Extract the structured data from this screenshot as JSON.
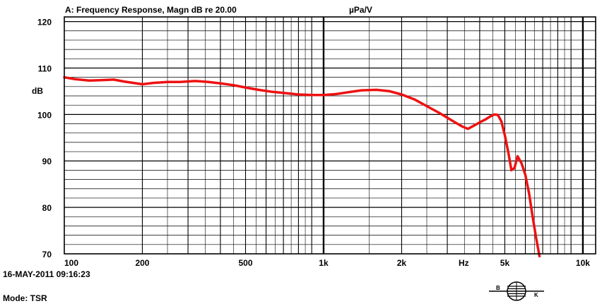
{
  "header": {
    "title": "A: Frequency Response, Magn dB re 20.00",
    "unit": "µPa/V"
  },
  "footer": {
    "timestamp": "16-MAY-2011 09:16:23",
    "mode": "Mode: TSR"
  },
  "logo": {
    "icon": "bruel-kjaer-logo",
    "left_letter": "B",
    "right_letter": "K"
  },
  "colors": {
    "curve": "#ee1111",
    "grid": "#000000",
    "background": "#ffffff"
  },
  "chart_data": {
    "type": "line",
    "title": "A: Frequency Response, Magn dB re 20.00",
    "xlabel": "Hz",
    "ylabel": "dB",
    "xscale": "log",
    "xlim": [
      100,
      11200
    ],
    "ylim": [
      70,
      121
    ],
    "grid": true,
    "x_ticks": [
      {
        "value": 100,
        "label": "100"
      },
      {
        "value": 200,
        "label": "200"
      },
      {
        "value": 500,
        "label": "500"
      },
      {
        "value": 1000,
        "label": "1k"
      },
      {
        "value": 2000,
        "label": "2k"
      },
      {
        "value": 5000,
        "label": "5k"
      },
      {
        "value": 10000,
        "label": "10k"
      }
    ],
    "y_ticks": [
      {
        "value": 70,
        "label": "70"
      },
      {
        "value": 80,
        "label": "80"
      },
      {
        "value": 90,
        "label": "90"
      },
      {
        "value": 100,
        "label": "100"
      },
      {
        "value": 110,
        "label": "110"
      },
      {
        "value": 120,
        "label": "120"
      }
    ],
    "series": [
      {
        "x": [
          100,
          110,
          125,
          140,
          155,
          170,
          185,
          200,
          220,
          250,
          280,
          320,
          360,
          400,
          450,
          500,
          560,
          630,
          710,
          800,
          900,
          1000,
          1120,
          1250,
          1400,
          1600,
          1800,
          2000,
          2250,
          2500,
          2800,
          3150,
          3400,
          3600,
          3800,
          4000,
          4200,
          4400,
          4550,
          4700,
          4850,
          5000,
          5150,
          5300,
          5450,
          5600,
          5800,
          6000,
          6200,
          6400,
          6600,
          6800
        ],
        "y": [
          108.0,
          107.6,
          107.3,
          107.4,
          107.5,
          107.1,
          106.8,
          106.5,
          106.8,
          107.0,
          107.0,
          107.2,
          107.0,
          106.7,
          106.3,
          105.8,
          105.3,
          104.9,
          104.6,
          104.3,
          104.2,
          104.2,
          104.4,
          104.8,
          105.2,
          105.3,
          105.0,
          104.3,
          103.2,
          101.8,
          100.3,
          98.6,
          97.5,
          96.9,
          97.6,
          98.3,
          98.9,
          99.6,
          100.0,
          99.9,
          98.5,
          95.5,
          92.0,
          88.0,
          88.5,
          91.0,
          89.5,
          87.0,
          83.0,
          78.0,
          73.5,
          69.5
        ]
      }
    ]
  }
}
